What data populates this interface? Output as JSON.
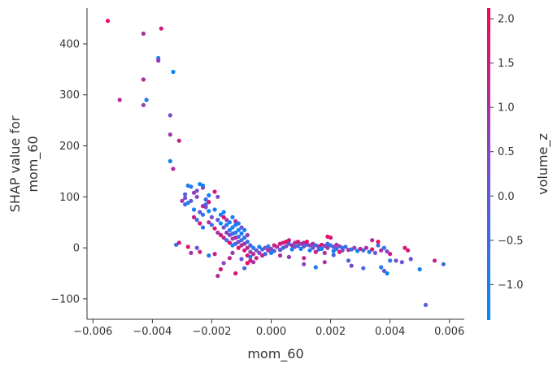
{
  "chart_data": {
    "type": "scatter",
    "xlabel": "mom_60",
    "ylabel_lines": [
      "SHAP value for",
      "mom_60"
    ],
    "colorbar_label": "volume_z",
    "xlim": [
      -0.0062,
      0.0065
    ],
    "ylim": [
      -140,
      470
    ],
    "xticks": [
      -0.006,
      -0.004,
      -0.002,
      0.0,
      0.002,
      0.004,
      0.006
    ],
    "xtick_labels": [
      "−0.006",
      "−0.004",
      "−0.002",
      "0.000",
      "0.002",
      "0.004",
      "0.006"
    ],
    "yticks": [
      -100,
      0,
      100,
      200,
      300,
      400
    ],
    "ytick_labels": [
      "−100",
      "0",
      "100",
      "200",
      "300",
      "400"
    ],
    "colorbar_range": [
      -1.4,
      2.12
    ],
    "colorbar_ticks": [
      -1.0,
      -0.5,
      0.0,
      0.5,
      1.0,
      1.5,
      2.0
    ],
    "colorbar_tick_labels": [
      "−1.0",
      "−0.5",
      "0.0",
      "0.5",
      "1.0",
      "1.5",
      "2.0"
    ],
    "colormap": [
      "#008bfb",
      "#7a4ccf",
      "#ff0052"
    ],
    "grid": false,
    "points": [
      [
        -0.0055,
        445,
        1.8
      ],
      [
        -0.0051,
        290,
        1.2
      ],
      [
        -0.0043,
        420,
        1.0
      ],
      [
        -0.0043,
        330,
        1.1
      ],
      [
        -0.0043,
        280,
        0.7
      ],
      [
        -0.0042,
        290,
        -1.0
      ],
      [
        -0.0038,
        372,
        -0.9
      ],
      [
        -0.0038,
        367,
        0.8
      ],
      [
        -0.0037,
        430,
        1.5
      ],
      [
        -0.0034,
        260,
        0.4
      ],
      [
        -0.0033,
        345,
        -1.2
      ],
      [
        -0.0034,
        222,
        0.9
      ],
      [
        -0.0034,
        170,
        -1.1
      ],
      [
        -0.0033,
        155,
        1.1
      ],
      [
        -0.0031,
        210,
        1.3
      ],
      [
        -0.0028,
        122,
        -1.0
      ],
      [
        -0.0027,
        120,
        -0.8
      ],
      [
        -0.0025,
        112,
        0.3
      ],
      [
        -0.0024,
        125,
        -1.2
      ],
      [
        -0.0023,
        118,
        0.9
      ],
      [
        -0.0023,
        122,
        -1.1
      ],
      [
        -0.0022,
        95,
        -0.6
      ],
      [
        -0.0021,
        90,
        1.5
      ],
      [
        -0.0029,
        98,
        0.2
      ],
      [
        -0.0029,
        85,
        -0.5
      ],
      [
        -0.0027,
        92,
        0.1
      ],
      [
        -0.0026,
        75,
        -1.0
      ],
      [
        -0.0025,
        100,
        0.6
      ],
      [
        -0.0026,
        60,
        1.4
      ],
      [
        -0.0025,
        55,
        -0.4
      ],
      [
        -0.0024,
        70,
        0.0
      ],
      [
        -0.0023,
        65,
        -0.9
      ],
      [
        -0.0022,
        80,
        0.5
      ],
      [
        -0.0021,
        72,
        -1.2
      ],
      [
        -0.0021,
        50,
        1.1
      ],
      [
        -0.002,
        60,
        0.3
      ],
      [
        -0.002,
        45,
        -0.7
      ],
      [
        -0.0019,
        75,
        -1.0
      ],
      [
        -0.0019,
        38,
        1.8
      ],
      [
        -0.0018,
        55,
        -0.2
      ],
      [
        -0.0018,
        30,
        0.9
      ],
      [
        -0.0017,
        65,
        -1.1
      ],
      [
        -0.0017,
        25,
        1.6
      ],
      [
        -0.0016,
        70,
        -1.3
      ],
      [
        -0.0016,
        40,
        0.2
      ],
      [
        -0.0016,
        20,
        1.2
      ],
      [
        -0.0015,
        45,
        -0.8
      ],
      [
        -0.0015,
        30,
        0.7
      ],
      [
        -0.0015,
        15,
        -0.5
      ],
      [
        -0.0014,
        50,
        -1.2
      ],
      [
        -0.0014,
        35,
        -1.0
      ],
      [
        -0.0014,
        25,
        0.4
      ],
      [
        -0.0014,
        10,
        1.9
      ],
      [
        -0.0013,
        40,
        -1.1
      ],
      [
        -0.0013,
        28,
        -0.6
      ],
      [
        -0.0013,
        18,
        0.8
      ],
      [
        -0.0013,
        5,
        -1.2
      ],
      [
        -0.0012,
        45,
        -1.0
      ],
      [
        -0.0012,
        30,
        -0.9
      ],
      [
        -0.0012,
        20,
        1.3
      ],
      [
        -0.0012,
        8,
        -0.3
      ],
      [
        -0.0011,
        35,
        -1.2
      ],
      [
        -0.0011,
        22,
        -0.7
      ],
      [
        -0.0011,
        12,
        0.5
      ],
      [
        -0.0011,
        0,
        1.7
      ],
      [
        -0.001,
        28,
        -1.1
      ],
      [
        -0.001,
        15,
        -0.4
      ],
      [
        -0.001,
        5,
        1.0
      ],
      [
        -0.0009,
        20,
        -0.8
      ],
      [
        -0.0009,
        8,
        0.9
      ],
      [
        -0.0009,
        -5,
        1.6
      ],
      [
        -0.0008,
        12,
        -0.6
      ],
      [
        -0.0008,
        0,
        1.2
      ],
      [
        -0.0008,
        -15,
        1.8
      ],
      [
        -0.0007,
        5,
        -0.3
      ],
      [
        -0.0007,
        -8,
        0.7
      ],
      [
        -0.0007,
        -25,
        1.5
      ],
      [
        -0.0006,
        0,
        -0.9
      ],
      [
        -0.0006,
        -12,
        1.1
      ],
      [
        -0.0005,
        -5,
        0.2
      ],
      [
        -0.0005,
        -20,
        1.4
      ],
      [
        -0.0004,
        2,
        -1.0
      ],
      [
        -0.0004,
        -10,
        0.6
      ],
      [
        -0.0003,
        -3,
        -0.5
      ],
      [
        -0.0003,
        -15,
        1.3
      ],
      [
        -0.0002,
        0,
        0.4
      ],
      [
        -0.0002,
        -12,
        -0.2
      ],
      [
        -0.0001,
        -5,
        1.0
      ],
      [
        -0.0001,
        3,
        -0.8
      ],
      [
        0.0,
        -2,
        0.6
      ],
      [
        0.0,
        -10,
        -1.1
      ],
      [
        0.0001,
        5,
        1.5
      ],
      [
        0.0001,
        -6,
        -0.4
      ],
      [
        0.0002,
        2,
        0.9
      ],
      [
        0.0003,
        8,
        1.7
      ],
      [
        0.0003,
        -4,
        0.1
      ],
      [
        0.0004,
        10,
        1.2
      ],
      [
        0.0004,
        0,
        -0.6
      ],
      [
        0.0005,
        12,
        1.9
      ],
      [
        0.0005,
        3,
        0.4
      ],
      [
        0.0006,
        8,
        -0.2
      ],
      [
        0.0006,
        15,
        1.4
      ],
      [
        0.0007,
        5,
        0.8
      ],
      [
        0.0007,
        -3,
        -0.9
      ],
      [
        0.0008,
        10,
        1.1
      ],
      [
        0.0008,
        2,
        0.3
      ],
      [
        0.0009,
        12,
        1.6
      ],
      [
        0.0009,
        4,
        -0.5
      ],
      [
        0.001,
        8,
        0.7
      ],
      [
        0.001,
        -2,
        -1.0
      ],
      [
        0.0011,
        10,
        1.3
      ],
      [
        0.0011,
        3,
        0.0
      ],
      [
        0.0012,
        6,
        -0.8
      ],
      [
        0.0012,
        12,
        1.8
      ],
      [
        0.0013,
        5,
        0.6
      ],
      [
        0.0013,
        -5,
        -1.1
      ],
      [
        0.0014,
        8,
        1.0
      ],
      [
        0.0014,
        0,
        0.2
      ],
      [
        0.0015,
        5,
        -0.6
      ],
      [
        0.0015,
        -8,
        1.4
      ],
      [
        0.0016,
        3,
        0.9
      ],
      [
        0.0016,
        -3,
        -0.3
      ],
      [
        0.0017,
        6,
        1.6
      ],
      [
        0.0017,
        -2,
        -1.2
      ],
      [
        0.0018,
        4,
        0.5
      ],
      [
        0.0018,
        -10,
        1.1
      ],
      [
        0.0019,
        8,
        -0.4
      ],
      [
        0.0019,
        0,
        0.8
      ],
      [
        0.0019,
        22,
        1.9
      ],
      [
        0.002,
        5,
        -0.9
      ],
      [
        0.002,
        20,
        1.5
      ],
      [
        0.0021,
        2,
        0.3
      ],
      [
        0.0021,
        -6,
        -1.0
      ],
      [
        0.0022,
        6,
        1.2
      ],
      [
        0.0022,
        -2,
        -0.7
      ],
      [
        0.0023,
        3,
        0.6
      ],
      [
        0.0023,
        -8,
        1.7
      ],
      [
        0.0024,
        0,
        -1.1
      ],
      [
        0.0024,
        -5,
        0.4
      ],
      [
        0.0025,
        2,
        -0.5
      ],
      [
        0.0026,
        -4,
        1.0
      ],
      [
        0.0027,
        -3,
        -0.8
      ],
      [
        0.0028,
        0,
        0.7
      ],
      [
        0.0029,
        -6,
        -1.2
      ],
      [
        0.003,
        -2,
        1.3
      ],
      [
        0.0031,
        -5,
        -0.3
      ],
      [
        0.0032,
        0,
        0.9
      ],
      [
        0.0033,
        -8,
        -1.0
      ],
      [
        0.0034,
        -3,
        1.6
      ],
      [
        0.0035,
        -10,
        0.2
      ],
      [
        0.0036,
        5,
        -0.6
      ],
      [
        0.0037,
        -5,
        1.1
      ],
      [
        0.0038,
        0,
        -0.9
      ],
      [
        0.0039,
        -7,
        0.5
      ],
      [
        0.004,
        -12,
        1.4
      ],
      [
        0.0036,
        12,
        1.8
      ],
      [
        0.0034,
        15,
        1.2
      ],
      [
        0.004,
        -25,
        -0.7
      ],
      [
        0.0042,
        -25,
        0.3
      ],
      [
        0.0044,
        -28,
        0.0
      ],
      [
        0.0045,
        0,
        1.5
      ],
      [
        0.0046,
        -5,
        1.7
      ],
      [
        0.005,
        -42,
        -1.1
      ],
      [
        0.0037,
        -38,
        -0.8
      ],
      [
        0.0038,
        -45,
        0.1
      ],
      [
        0.0039,
        -50,
        -1.2
      ],
      [
        0.0031,
        -40,
        -0.5
      ],
      [
        0.0027,
        -35,
        0.4
      ],
      [
        0.0026,
        -25,
        -0.2
      ],
      [
        0.0015,
        -38,
        -0.9
      ],
      [
        0.0011,
        -32,
        0.6
      ],
      [
        -0.0014,
        -20,
        1.3
      ],
      [
        -0.0013,
        -10,
        0.8
      ],
      [
        -0.0008,
        -30,
        1.9
      ],
      [
        -0.0009,
        -40,
        -0.4
      ],
      [
        -0.0006,
        -28,
        1.0
      ],
      [
        -0.0017,
        -42,
        1.6
      ],
      [
        -0.0016,
        -30,
        0.5
      ],
      [
        -0.0018,
        -55,
        1.1
      ],
      [
        -0.0019,
        -12,
        1.4
      ],
      [
        -0.0021,
        -15,
        -0.9
      ],
      [
        -0.0024,
        -8,
        1.2
      ],
      [
        -0.0025,
        0,
        0.3
      ],
      [
        -0.0028,
        2,
        1.8
      ],
      [
        -0.0027,
        -10,
        0.9
      ],
      [
        -0.0032,
        6,
        -0.6
      ],
      [
        -0.0031,
        10,
        1.5
      ],
      [
        -0.0012,
        -50,
        1.7
      ],
      [
        -0.001,
        -22,
        0.2
      ],
      [
        -0.0007,
        -18,
        -0.8
      ],
      [
        0.0003,
        -15,
        1.1
      ],
      [
        0.0006,
        -18,
        0.7
      ],
      [
        0.0011,
        -20,
        1.4
      ],
      [
        0.0018,
        -28,
        0.9
      ],
      [
        0.0021,
        -14,
        -0.3
      ],
      [
        0.0055,
        -25,
        1.3
      ],
      [
        0.0058,
        -32,
        -0.5
      ],
      [
        0.0052,
        -112,
        -0.2
      ],
      [
        0.0047,
        -22,
        0.1
      ],
      [
        -0.0019,
        110,
        1.6
      ],
      [
        -0.0021,
        103,
        -1.1
      ],
      [
        -0.0018,
        100,
        0.4
      ],
      [
        -0.0016,
        60,
        1.8
      ],
      [
        -0.0017,
        48,
        -1.3
      ],
      [
        -0.0015,
        55,
        0.6
      ],
      [
        -0.0013,
        60,
        -1.2
      ],
      [
        -0.0012,
        52,
        1.0
      ],
      [
        -0.0011,
        48,
        -0.9
      ],
      [
        -0.001,
        40,
        0.3
      ],
      [
        -0.0009,
        35,
        -1.0
      ],
      [
        -0.0008,
        25,
        0.8
      ],
      [
        -0.0023,
        82,
        1.3
      ],
      [
        -0.0022,
        85,
        -0.4
      ],
      [
        -0.0026,
        108,
        0.7
      ],
      [
        -0.0028,
        88,
        -1.0
      ],
      [
        -0.003,
        92,
        0.9
      ],
      [
        -0.0029,
        105,
        -0.2
      ],
      [
        -0.0024,
        48,
        1.5
      ],
      [
        -0.0023,
        40,
        -0.7
      ]
    ]
  }
}
